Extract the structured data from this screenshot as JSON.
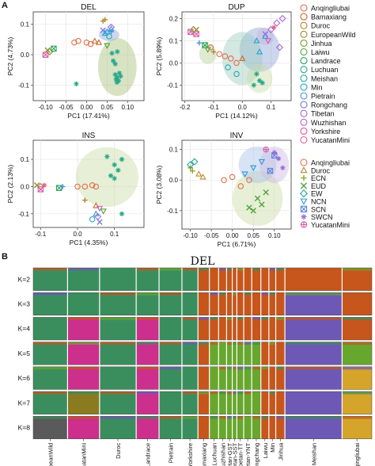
{
  "panel_letters": {
    "a": "A",
    "b": "B"
  },
  "chart_data": [
    {
      "type": "scatter",
      "title": "DEL",
      "xlabel": "PC1 (17.41%)",
      "ylabel": "PC2 (4.73%)",
      "xlim": [
        -0.13,
        0.14
      ],
      "ylim": [
        -0.15,
        0.14
      ],
      "xticks": [
        -0.1,
        -0.05,
        0.0,
        0.05,
        0.1
      ],
      "xtick_labels": [
        "-0.10",
        "-0.05",
        "0.00",
        "0.05",
        "0.10"
      ],
      "yticks": [
        -0.1,
        0.0,
        0.1
      ],
      "ytick_labels": [
        "-0.1",
        "0.0",
        "0.1"
      ],
      "grid": true,
      "ellipses": [
        {
          "group": "Luchuan",
          "color": "#a9c27b",
          "cx": 0.075,
          "cy": -0.04,
          "rx": 0.047,
          "ry": 0.095,
          "angle": 0
        },
        {
          "group": "Min",
          "color": "#8fa7d8",
          "cx": 0.055,
          "cy": 0.065,
          "rx": 0.025,
          "ry": 0.02,
          "angle": 0
        }
      ],
      "points": [
        {
          "group": "Luchuan",
          "x": 0.062,
          "y": 0.005
        },
        {
          "group": "Luchuan",
          "x": 0.075,
          "y": 0.01
        },
        {
          "group": "Luchuan",
          "x": 0.07,
          "y": -0.03
        },
        {
          "group": "Luchuan",
          "x": 0.08,
          "y": -0.06
        },
        {
          "group": "Luchuan",
          "x": 0.075,
          "y": -0.075
        },
        {
          "group": "Luchuan",
          "x": 0.072,
          "y": -0.08
        },
        {
          "group": "Luchuan",
          "x": 0.078,
          "y": -0.085
        },
        {
          "group": "Luchuan",
          "x": 0.074,
          "y": -0.09
        },
        {
          "group": "Luchuan",
          "x": 0.083,
          "y": -0.07
        },
        {
          "group": "Luchuan",
          "x": 0.07,
          "y": -0.065
        },
        {
          "group": "Min",
          "x": 0.05,
          "y": 0.075
        },
        {
          "group": "Min",
          "x": 0.06,
          "y": 0.085
        },
        {
          "group": "Min",
          "x": 0.045,
          "y": 0.07
        },
        {
          "group": "Rongchang",
          "x": 0.04,
          "y": 0.08
        },
        {
          "group": "Duroc",
          "x": 0.04,
          "y": 0.11
        },
        {
          "group": "Duroc",
          "x": 0.045,
          "y": 0.115
        },
        {
          "group": "Anqingliubai",
          "x": -0.03,
          "y": 0.04
        },
        {
          "group": "Anqingliubai",
          "x": -0.02,
          "y": 0.045
        },
        {
          "group": "Anqingliubai",
          "x": 0.0,
          "y": 0.04
        },
        {
          "group": "Anqingliubai",
          "x": 0.01,
          "y": 0.035
        },
        {
          "group": "Bamaxiang",
          "x": 0.02,
          "y": 0.045
        },
        {
          "group": "Bamaxiang",
          "x": 0.03,
          "y": 0.04
        },
        {
          "group": "Jinhua",
          "x": -0.09,
          "y": 0.01
        },
        {
          "group": "EuropeanWild",
          "x": -0.095,
          "y": 0.015
        },
        {
          "group": "Landrace",
          "x": -0.08,
          "y": 0.02
        },
        {
          "group": "Yorkshire",
          "x": -0.1,
          "y": 0.0
        },
        {
          "group": "Laiwu",
          "x": 0.05,
          "y": 0.03
        },
        {
          "group": "Tibetan",
          "x": 0.06,
          "y": 0.09
        },
        {
          "group": "Meishan",
          "x": 0.055,
          "y": 0.06
        },
        {
          "group": "Pietrain",
          "x": 0.06,
          "y": 0.075
        },
        {
          "group": "Luchuan",
          "x": -0.025,
          "y": -0.095
        },
        {
          "group": "Luchuan",
          "x": 0.065,
          "y": -0.02
        }
      ]
    },
    {
      "type": "scatter",
      "title": "DUP",
      "xlabel": "PC1 (14.12%)",
      "ylabel": "PC2 (5.89%)",
      "xlim": [
        -0.21,
        0.17
      ],
      "ylim": [
        -0.17,
        0.23
      ],
      "xticks": [
        -0.2,
        -0.1,
        0.0,
        0.1
      ],
      "xtick_labels": [
        "-0.2",
        "-0.1",
        "0.0",
        "0.1"
      ],
      "yticks": [
        -0.1,
        0.0,
        0.1,
        0.2
      ],
      "ytick_labels": [
        "-0.1",
        "0.0",
        "0.1",
        "0.2"
      ],
      "grid": true,
      "ellipses": [
        {
          "group": "Min",
          "color": "#8fa7d8",
          "cx": 0.06,
          "cy": 0.06,
          "rx": 0.07,
          "ry": 0.1,
          "angle": 0
        },
        {
          "group": "Meishan",
          "color": "#9ecbbc",
          "cx": 0.0,
          "cy": 0.02,
          "rx": 0.07,
          "ry": 0.12,
          "angle": 0
        },
        {
          "group": "Laiwu",
          "color": "#b8d39a",
          "cx": -0.12,
          "cy": 0.04,
          "rx": 0.03,
          "ry": 0.045,
          "angle": 0
        },
        {
          "group": "Luchuan",
          "color": "#c9dba6",
          "cx": 0.06,
          "cy": -0.07,
          "rx": 0.045,
          "ry": 0.065,
          "angle": 0
        },
        {
          "group": "Rongchang",
          "color": "#c6b4d8",
          "cx": 0.08,
          "cy": 0.12,
          "rx": 0.03,
          "ry": 0.04,
          "angle": 0
        }
      ],
      "points": [
        {
          "group": "Yorkshire",
          "x": -0.18,
          "y": 0.14
        },
        {
          "group": "Yorkshire",
          "x": -0.16,
          "y": 0.13
        },
        {
          "group": "Jinhua",
          "x": -0.17,
          "y": 0.15
        },
        {
          "group": "EuropeanWild",
          "x": -0.16,
          "y": 0.15
        },
        {
          "group": "Landrace",
          "x": -0.13,
          "y": 0.08
        },
        {
          "group": "Pietrain",
          "x": -0.15,
          "y": 0.09
        },
        {
          "group": "Anqingliubai",
          "x": -0.11,
          "y": 0.07
        },
        {
          "group": "Anqingliubai",
          "x": -0.08,
          "y": 0.04
        },
        {
          "group": "Anqingliubai",
          "x": -0.06,
          "y": 0.03
        },
        {
          "group": "Anqingliubai",
          "x": -0.04,
          "y": 0.02
        },
        {
          "group": "Anqingliubai",
          "x": -0.02,
          "y": 0.0
        },
        {
          "group": "Bamaxiang",
          "x": 0.0,
          "y": 0.02
        },
        {
          "group": "Duroc",
          "x": -0.1,
          "y": 0.05
        },
        {
          "group": "Laiwu",
          "x": -0.12,
          "y": 0.06
        },
        {
          "group": "Meishan",
          "x": -0.05,
          "y": -0.02
        },
        {
          "group": "Meishan",
          "x": -0.02,
          "y": -0.05
        },
        {
          "group": "Luchuan",
          "x": 0.05,
          "y": -0.05
        },
        {
          "group": "Luchuan",
          "x": 0.06,
          "y": -0.08
        },
        {
          "group": "Luchuan",
          "x": 0.04,
          "y": -0.1
        },
        {
          "group": "Luchuan",
          "x": 0.07,
          "y": -0.09
        },
        {
          "group": "Min",
          "x": 0.05,
          "y": 0.1
        },
        {
          "group": "Min",
          "x": 0.08,
          "y": 0.12
        },
        {
          "group": "Min",
          "x": 0.06,
          "y": 0.05
        },
        {
          "group": "Tibetan",
          "x": 0.1,
          "y": 0.15
        },
        {
          "group": "Tibetan",
          "x": 0.12,
          "y": 0.18
        },
        {
          "group": "Tibetan",
          "x": 0.14,
          "y": 0.2
        },
        {
          "group": "Wuzhishan",
          "x": 0.09,
          "y": 0.1
        },
        {
          "group": "Rongchang",
          "x": 0.08,
          "y": 0.13
        },
        {
          "group": "YucatanMini",
          "x": 0.11,
          "y": 0.16
        },
        {
          "group": "Tibetan",
          "x": 0.13,
          "y": 0.07
        }
      ]
    },
    {
      "type": "scatter",
      "title": "INS",
      "xlabel": "PC1 (4.35%)",
      "ylabel": "PC2 (2.13%)",
      "xlim": [
        -0.12,
        0.18
      ],
      "ylim": [
        -0.15,
        0.17
      ],
      "xticks": [
        -0.1,
        0.0,
        0.1
      ],
      "xtick_labels": [
        "-0.1",
        "0.0",
        "0.1"
      ],
      "yticks": [
        -0.1,
        0.0,
        0.1
      ],
      "ytick_labels": [
        "-0.1",
        "0.0",
        "0.1"
      ],
      "grid": true,
      "ellipses": [
        {
          "group": "Luchuan",
          "color": "#c9dba6",
          "cx": 0.08,
          "cy": 0.035,
          "rx": 0.085,
          "ry": 0.11,
          "angle": 0
        }
      ],
      "points": [
        {
          "group": "Luchuan",
          "x": 0.08,
          "y": 0.11
        },
        {
          "group": "Luchuan",
          "x": 0.1,
          "y": 0.08
        },
        {
          "group": "Luchuan",
          "x": 0.11,
          "y": 0.06
        },
        {
          "group": "Luchuan",
          "x": 0.09,
          "y": 0.04
        },
        {
          "group": "Luchuan",
          "x": 0.12,
          "y": 0.1
        },
        {
          "group": "Luchuan",
          "x": 0.1,
          "y": 0.03
        },
        {
          "group": "Anqingliubai",
          "x": 0.0,
          "y": 0.0
        },
        {
          "group": "Anqingliubai",
          "x": 0.02,
          "y": 0.0
        },
        {
          "group": "Anqingliubai",
          "x": 0.04,
          "y": 0.005
        },
        {
          "group": "Anqingliubai",
          "x": 0.05,
          "y": 0.0
        },
        {
          "group": "Jinhua",
          "x": -0.1,
          "y": 0.0
        },
        {
          "group": "EuropeanWild",
          "x": -0.11,
          "y": 0.005
        },
        {
          "group": "Landrace",
          "x": -0.05,
          "y": -0.005
        },
        {
          "group": "Pietrain",
          "x": -0.04,
          "y": 0.0
        },
        {
          "group": "Yorkshire",
          "x": -0.1,
          "y": -0.01
        },
        {
          "group": "Duroc",
          "x": 0.02,
          "y": -0.05
        },
        {
          "group": "Bamaxiang",
          "x": 0.05,
          "y": -0.07
        },
        {
          "group": "Wuzhishan",
          "x": 0.06,
          "y": -0.08
        },
        {
          "group": "Min",
          "x": 0.05,
          "y": -0.1
        },
        {
          "group": "Meishan",
          "x": 0.04,
          "y": -0.12
        },
        {
          "group": "Tibetan",
          "x": 0.055,
          "y": -0.11
        },
        {
          "group": "Rongchang",
          "x": 0.06,
          "y": -0.13
        },
        {
          "group": "Laiwu",
          "x": 0.07,
          "y": -0.09
        },
        {
          "group": "Luchuan",
          "x": 0.12,
          "y": -0.1
        },
        {
          "group": "YucatanMini",
          "x": -0.09,
          "y": 0.005
        }
      ]
    },
    {
      "type": "scatter",
      "title": "INV",
      "xlabel": "PC1 (6.71%)",
      "ylabel": "PC2 (3.08%)",
      "xlim": [
        -0.12,
        0.14
      ],
      "ylim": [
        -0.16,
        0.13
      ],
      "xticks": [
        -0.1,
        -0.05,
        0.0,
        0.05,
        0.1
      ],
      "xtick_labels": [
        "-0.10",
        "-0.05",
        "0.00",
        "0.05",
        "0.10"
      ],
      "yticks": [
        -0.1,
        0.0,
        0.1
      ],
      "ytick_labels": [
        "-0.1",
        "0.0",
        "0.1"
      ],
      "grid": true,
      "ellipses": [
        {
          "group": "EUD",
          "color": "#c9dba6",
          "cx": 0.06,
          "cy": -0.06,
          "rx": 0.06,
          "ry": 0.09,
          "angle": 0
        },
        {
          "group": "NCN",
          "color": "#a8c0e8",
          "cx": 0.06,
          "cy": 0.05,
          "rx": 0.045,
          "ry": 0.06,
          "angle": 0
        },
        {
          "group": "SWCN",
          "color": "#cdbbe2",
          "cx": 0.1,
          "cy": 0.05,
          "rx": 0.035,
          "ry": 0.06,
          "angle": 0
        }
      ],
      "points": [
        {
          "group": "Anqingliubai",
          "x": -0.02,
          "y": 0.0
        },
        {
          "group": "Anqingliubai",
          "x": 0.0,
          "y": 0.01
        },
        {
          "group": "Anqingliubai",
          "x": 0.02,
          "y": -0.02
        },
        {
          "group": "Anqingliubai",
          "x": 0.04,
          "y": 0.0
        },
        {
          "group": "Duroc",
          "x": -0.08,
          "y": 0.02
        },
        {
          "group": "Duroc",
          "x": -0.07,
          "y": 0.01
        },
        {
          "group": "ECN",
          "x": -0.1,
          "y": 0.04
        },
        {
          "group": "ECN",
          "x": -0.095,
          "y": 0.03
        },
        {
          "group": "EUD",
          "x": 0.06,
          "y": -0.06
        },
        {
          "group": "EUD",
          "x": 0.07,
          "y": -0.08
        },
        {
          "group": "EUD",
          "x": 0.05,
          "y": -0.1
        },
        {
          "group": "EUD",
          "x": 0.08,
          "y": -0.04
        },
        {
          "group": "EW",
          "x": -0.1,
          "y": 0.05
        },
        {
          "group": "EW",
          "x": -0.09,
          "y": 0.06
        },
        {
          "group": "NCN",
          "x": 0.05,
          "y": 0.04
        },
        {
          "group": "NCN",
          "x": 0.07,
          "y": 0.06
        },
        {
          "group": "SCN",
          "x": 0.1,
          "y": 0.08
        },
        {
          "group": "SCN",
          "x": 0.09,
          "y": 0.03
        },
        {
          "group": "SWCN",
          "x": 0.11,
          "y": 0.07
        },
        {
          "group": "SWCN",
          "x": 0.1,
          "y": 0.09
        },
        {
          "group": "SWCN",
          "x": 0.12,
          "y": 0.04
        },
        {
          "group": "YucatanMini",
          "x": 0.08,
          "y": 0.1
        },
        {
          "group": "EUD",
          "x": 0.04,
          "y": -0.09
        },
        {
          "group": "NCN",
          "x": 0.03,
          "y": 0.02
        }
      ]
    },
    {
      "type": "bar",
      "stacked": true,
      "title": "DEL",
      "row_labels": [
        "K=2",
        "K=3",
        "K=4",
        "K=5",
        "K=6",
        "K=7",
        "K=8"
      ],
      "populations": [
        "EuropeanWild",
        "YucatanMini",
        "Duroc",
        "Landrace",
        "Pietrain",
        "Yorkshire",
        "Bamaxiang",
        "Luchuan",
        "Wuzhishan",
        "Tibetan-GST",
        "Tibetan-SST",
        "Tibetan-TT",
        "Tibetan-YNT",
        "Rongchang",
        "Laiwu",
        "Min",
        "Jinhua",
        "Meishan",
        "Anqingliubai"
      ]
    }
  ],
  "legends": {
    "breeds": {
      "items": [
        {
          "label": "Anqingliubai",
          "color": "#e36d4a",
          "shape": "circle"
        },
        {
          "label": "Bamaxiang",
          "color": "#c86a2c",
          "shape": "circle"
        },
        {
          "label": "Duroc",
          "color": "#b7832e",
          "shape": "circle"
        },
        {
          "label": "EuropeanWild",
          "color": "#9a8f2a",
          "shape": "circle"
        },
        {
          "label": "Jinhua",
          "color": "#7c9a2b",
          "shape": "circle"
        },
        {
          "label": "Laiwu",
          "color": "#55a33b",
          "shape": "circle"
        },
        {
          "label": "Landrace",
          "color": "#2fa35e",
          "shape": "circle"
        },
        {
          "label": "Luchuan",
          "color": "#26a88a",
          "shape": "circle"
        },
        {
          "label": "Meishan",
          "color": "#24a8b3",
          "shape": "circle"
        },
        {
          "label": "Min",
          "color": "#27a2d8",
          "shape": "circle"
        },
        {
          "label": "Pietrain",
          "color": "#4b8fe0",
          "shape": "circle"
        },
        {
          "label": "Rongchang",
          "color": "#7d79e0",
          "shape": "circle"
        },
        {
          "label": "Tibetan",
          "color": "#a867d8",
          "shape": "circle"
        },
        {
          "label": "Wuzhishan",
          "color": "#c95cc6",
          "shape": "circle"
        },
        {
          "label": "Yorkshire",
          "color": "#db5aa6",
          "shape": "circle"
        },
        {
          "label": "YucatanMini",
          "color": "#e46185",
          "shape": "circle"
        }
      ]
    },
    "groups": {
      "items": [
        {
          "label": "Anqingliubai",
          "color": "#e36d4a",
          "shape": "circle"
        },
        {
          "label": "Duroc",
          "color": "#c0882f",
          "shape": "triangle"
        },
        {
          "label": "ECN",
          "color": "#8da52a",
          "shape": "plus"
        },
        {
          "label": "EUD",
          "color": "#4fa53b",
          "shape": "cross"
        },
        {
          "label": "EW",
          "color": "#2aa69a",
          "shape": "diamond"
        },
        {
          "label": "NCN",
          "color": "#2b9ad8",
          "shape": "triangle-down"
        },
        {
          "label": "SCN",
          "color": "#5d86e0",
          "shape": "square-x"
        },
        {
          "label": "SWCN",
          "color": "#9a6ad8",
          "shape": "asterisk"
        },
        {
          "label": "YucatanMini",
          "color": "#d95aa6",
          "shape": "circle-plus"
        }
      ]
    }
  },
  "admixture_colors": {
    "green": "#3a8e5d",
    "orange": "#c6561c",
    "magenta": "#cc2f8c",
    "purple": "#6d59b5",
    "lime": "#68a72e",
    "gold": "#d4a52a",
    "olive": "#8a7a20",
    "gray": "#5a5a5a"
  }
}
